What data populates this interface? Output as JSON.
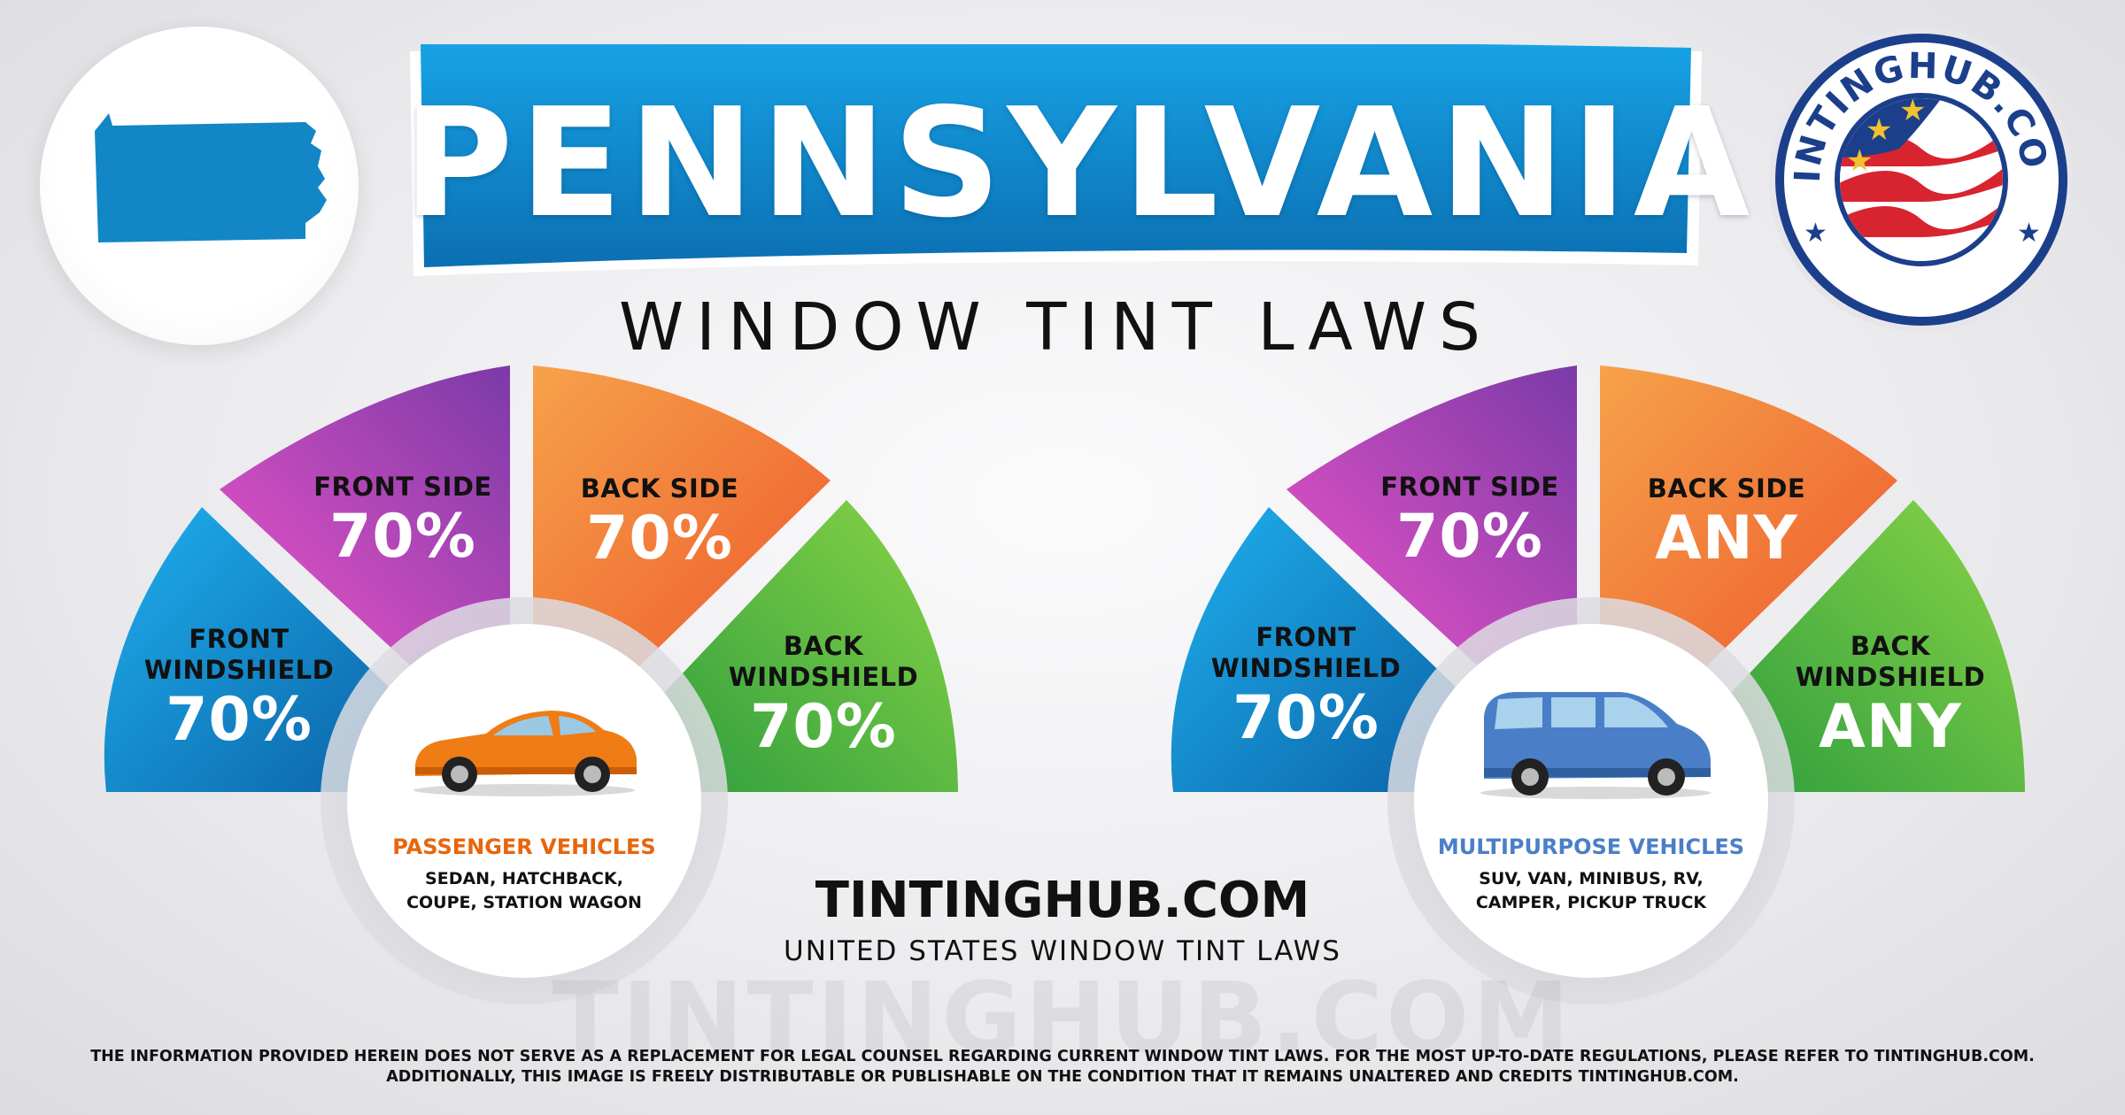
{
  "header": {
    "state_name": "PENNSYLVANIA",
    "subtitle": "WINDOW TINT LAWS"
  },
  "logo": {
    "ring_text": "TINTINGHUB.COM"
  },
  "passenger": {
    "vehicle_type": "PASSENGER VEHICLES",
    "vehicle_desc_line1": "SEDAN, HATCHBACK,",
    "vehicle_desc_line2": "COUPE, STATION WAGON",
    "accent_color": "#e8650c",
    "front_windshield_label_1": "FRONT",
    "front_windshield_label_2": "WINDSHIELD",
    "front_windshield_value": "70%",
    "front_side_label": "FRONT SIDE",
    "front_side_value": "70%",
    "back_side_label": "BACK SIDE",
    "back_side_value": "70%",
    "back_windshield_label_1": "BACK",
    "back_windshield_label_2": "WINDSHIELD",
    "back_windshield_value": "70%"
  },
  "multipurpose": {
    "vehicle_type": "MULTIPURPOSE VEHICLES",
    "vehicle_desc_line1": "SUV, VAN, MINIBUS, RV,",
    "vehicle_desc_line2": "CAMPER, PICKUP TRUCK",
    "accent_color": "#4a7fc8",
    "front_windshield_label_1": "FRONT",
    "front_windshield_label_2": "WINDSHIELD",
    "front_windshield_value": "70%",
    "front_side_label": "FRONT SIDE",
    "front_side_value": "70%",
    "back_side_label": "BACK SIDE",
    "back_side_value": "ANY",
    "back_windshield_label_1": "BACK",
    "back_windshield_label_2": "WINDSHIELD",
    "back_windshield_value": "ANY"
  },
  "footer": {
    "site": "TINTINGHUB.COM",
    "site_sub": "UNITED STATES WINDOW TINT LAWS",
    "watermark": "TINTINGHUB.COM",
    "disclaimer_line1": "THE INFORMATION PROVIDED HEREIN DOES NOT SERVE AS A REPLACEMENT FOR LEGAL COUNSEL REGARDING CURRENT WINDOW TINT LAWS. FOR THE MOST UP-TO-DATE REGULATIONS, PLEASE REFER TO TINTINGHUB.COM.",
    "disclaimer_line2": "ADDITIONALLY, THIS IMAGE IS FREELY DISTRIBUTABLE OR PUBLISHABLE ON THE CONDITION THAT IT REMAINS UNALTERED AND CREDITS TINTINGHUB.COM."
  },
  "colors": {
    "banner_blue": "#1385c9",
    "segment_blue": "#1a9ad8",
    "segment_purple": "#a13fbd",
    "segment_orange": "#f2873a",
    "segment_green": "#5cc141"
  }
}
